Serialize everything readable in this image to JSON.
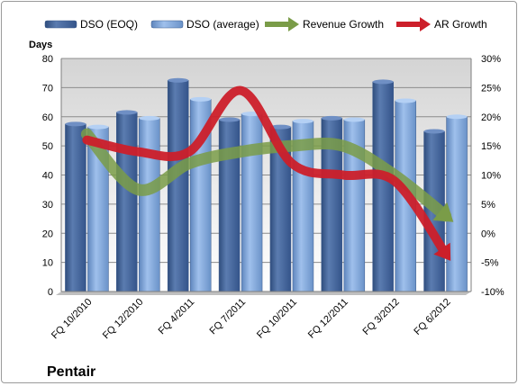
{
  "chart_data": {
    "type": "bar",
    "company": "Pentair",
    "ylabel": "Days",
    "y_left": {
      "min": 0,
      "max": 80,
      "ticks": [
        "0",
        "10",
        "20",
        "30",
        "40",
        "50",
        "60",
        "70",
        "80"
      ]
    },
    "y_right": {
      "min": -10,
      "max": 30,
      "ticks": [
        "-10%",
        "-5%",
        "0%",
        "5%",
        "10%",
        "15%",
        "20%",
        "25%",
        "30%"
      ]
    },
    "categories": [
      "FQ 10/2010",
      "FQ 12/2010",
      "FQ 4/2011",
      "FQ 7/2011",
      "FQ 10/2011",
      "FQ 12/2011",
      "FQ 3/2012",
      "FQ 6/2012"
    ],
    "series": [
      {
        "name": "DSO (EOQ)",
        "kind": "bar",
        "axis": "left",
        "color": "#4a6a9c",
        "values": [
          57.5,
          61.5,
          72.5,
          59,
          56.5,
          59.5,
          72,
          55
        ]
      },
      {
        "name": "DSO (average)",
        "kind": "bar",
        "axis": "left",
        "color": "#8aafe0",
        "values": [
          56.5,
          59.5,
          66,
          61,
          58.5,
          59,
          65.5,
          60
        ]
      },
      {
        "name": "Revenue Growth",
        "kind": "arrow-line",
        "axis": "right",
        "color": "#7a9c48",
        "values": [
          17,
          7.5,
          12,
          14,
          15,
          15,
          10,
          3
        ]
      },
      {
        "name": "AR Growth",
        "kind": "arrow-line",
        "axis": "right",
        "color": "#cc1f2a",
        "values": [
          16,
          14,
          14,
          24.5,
          12,
          10,
          9,
          -3.5
        ]
      }
    ],
    "grid": true,
    "legend": "top"
  }
}
